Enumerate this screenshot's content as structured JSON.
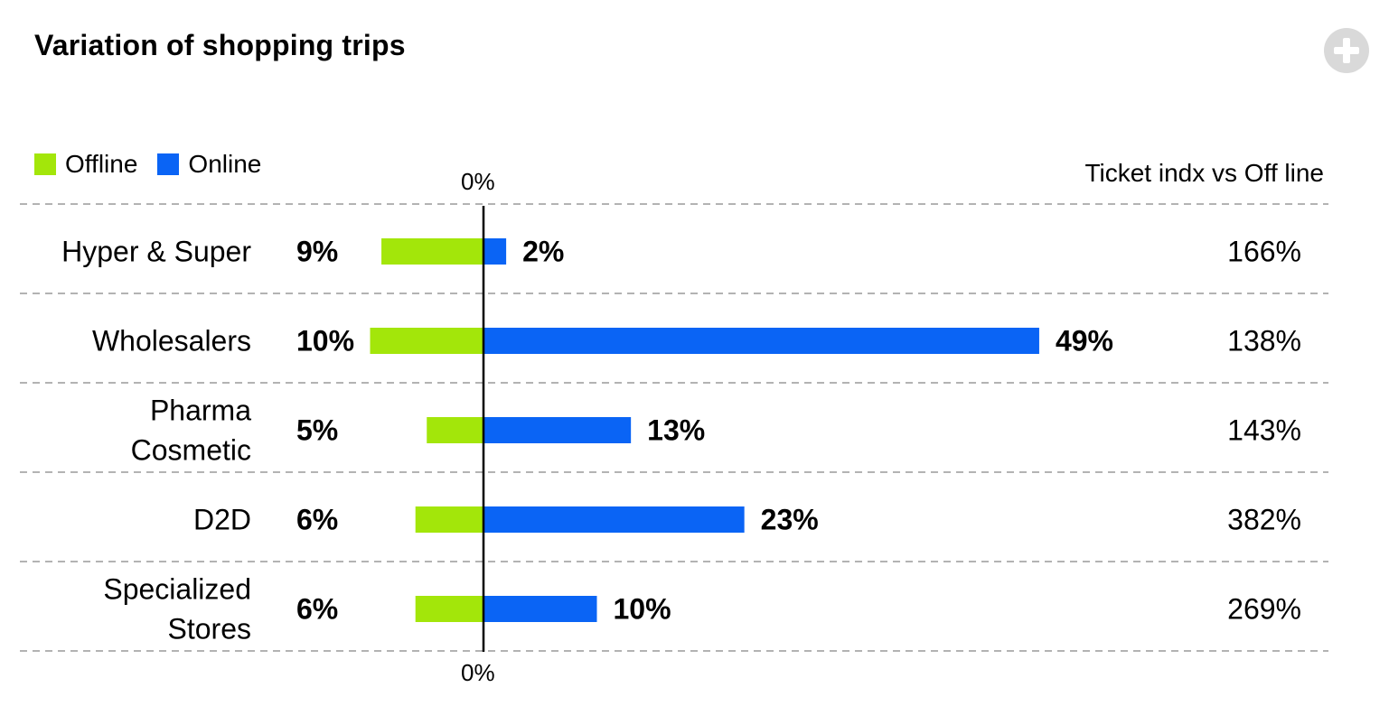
{
  "header": {
    "title": "Variation of shopping trips"
  },
  "legend": {
    "items": [
      {
        "label": "Offline",
        "color": "#a3e60a"
      },
      {
        "label": "Online",
        "color": "#0a64f5"
      }
    ]
  },
  "chart_data": {
    "type": "bar",
    "orientation": "horizontal-diverging",
    "title": "Variation of shopping trips",
    "zero_label": "0%",
    "index_header": "Ticket indx vs Off line",
    "categories": [
      [
        "Hyper & Super"
      ],
      [
        "Wholesalers"
      ],
      [
        "Pharma",
        "Cosmetic"
      ],
      [
        "D2D"
      ],
      [
        "Specialized",
        "Stores"
      ]
    ],
    "series": [
      {
        "name": "Offline",
        "color": "#a3e60a",
        "values": [
          9,
          10,
          5,
          6,
          6
        ],
        "labels": [
          "9%",
          "10%",
          "5%",
          "6%",
          "6%"
        ]
      },
      {
        "name": "Online",
        "color": "#0a64f5",
        "values": [
          2,
          49,
          13,
          23,
          10
        ],
        "labels": [
          "2%",
          "49%",
          "13%",
          "23%",
          "10%"
        ]
      }
    ],
    "ticket_index": [
      "166%",
      "138%",
      "143%",
      "382%",
      "269%"
    ],
    "gridlines": "dashed-row-separators",
    "legend_position": "top-left"
  }
}
